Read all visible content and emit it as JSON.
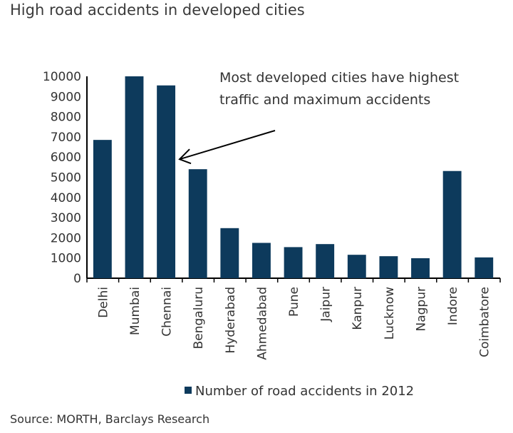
{
  "title": "High road accidents in developed cities",
  "source": "Source: MORTH, Barclays Research",
  "chart_data": {
    "type": "bar",
    "categories": [
      "Delhi",
      "Mumbai",
      "Chennai",
      "Bengaluru",
      "Hyderabad",
      "Ahmedabad",
      "Pune",
      "Jaipur",
      "Kanpur",
      "Lucknow",
      "Nagpur",
      "Indore",
      "Coimbatore"
    ],
    "series": [
      {
        "name": "Number of road accidents in 2012",
        "values": [
          6850,
          10000,
          9550,
          5400,
          2480,
          1750,
          1540,
          1690,
          1160,
          1090,
          990,
          5310,
          1030
        ]
      }
    ],
    "ylim": [
      0,
      10000
    ],
    "yticks": [
      0,
      1000,
      2000,
      3000,
      4000,
      5000,
      6000,
      7000,
      8000,
      9000,
      10000
    ],
    "grid": false,
    "legend": "bottom",
    "bar_color": "#0d3a5c",
    "annotation": {
      "lines": [
        "Most developed cities have highest",
        "traffic and maximum accidents"
      ],
      "points_to": "Chennai"
    }
  }
}
